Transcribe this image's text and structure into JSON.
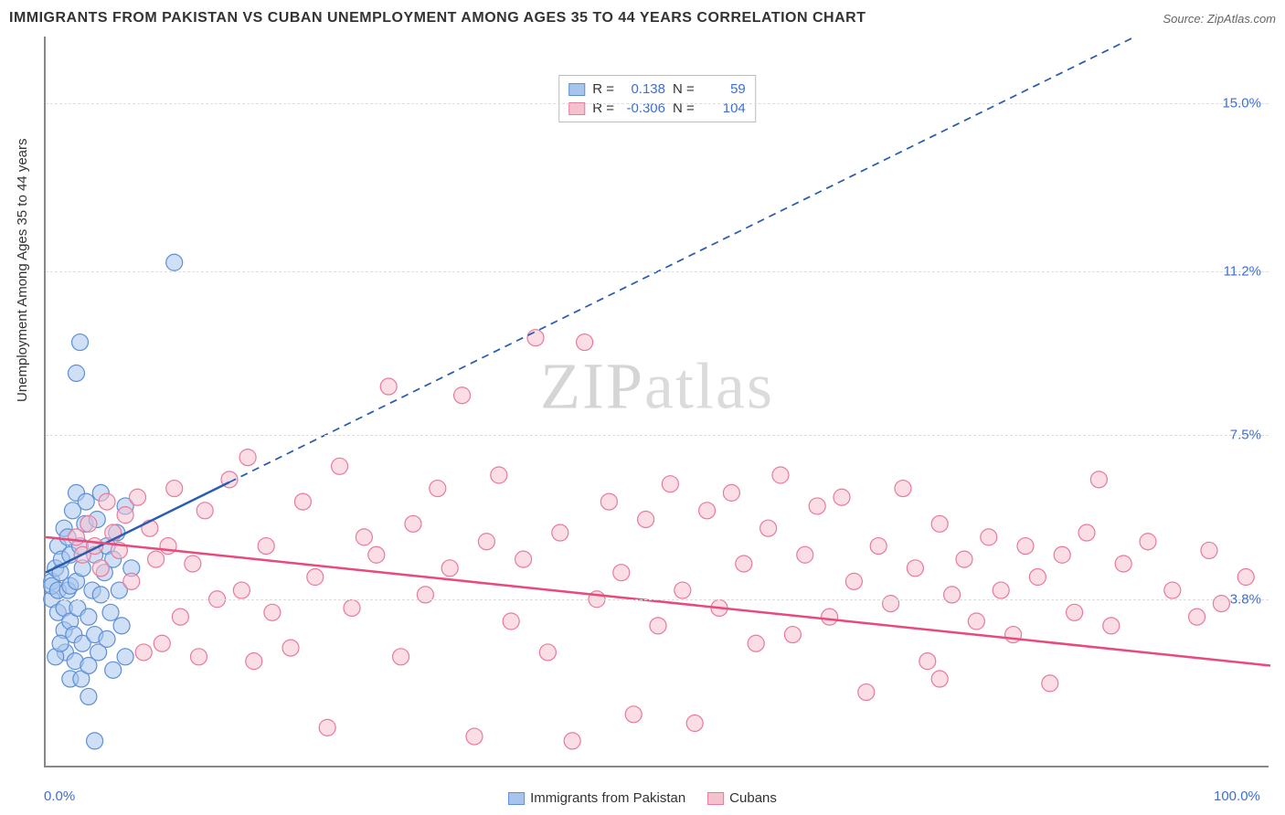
{
  "title": "IMMIGRANTS FROM PAKISTAN VS CUBAN UNEMPLOYMENT AMONG AGES 35 TO 44 YEARS CORRELATION CHART",
  "source": "Source: ZipAtlas.com",
  "watermark_a": "ZIP",
  "watermark_b": "atlas",
  "chart": {
    "type": "scatter",
    "background_color": "#ffffff",
    "grid_color": "#dddddd",
    "axis_color": "#888888",
    "y_axis_label": "Unemployment Among Ages 35 to 44 years",
    "y_axis_fontsize": 15,
    "xlim": [
      0,
      100
    ],
    "ylim": [
      0,
      16.5
    ],
    "x_ticks": [
      {
        "v": 0,
        "label": "0.0%",
        "anchor": "start"
      },
      {
        "v": 100,
        "label": "100.0%",
        "anchor": "end"
      }
    ],
    "y_ticks": [
      {
        "v": 3.8,
        "label": "3.8%"
      },
      {
        "v": 7.5,
        "label": "7.5%"
      },
      {
        "v": 11.2,
        "label": "11.2%"
      },
      {
        "v": 15.0,
        "label": "15.0%"
      }
    ],
    "tick_color": "#3b6fd6",
    "tick_fontsize": 15,
    "marker_radius": 9,
    "marker_opacity": 0.55,
    "series": [
      {
        "name": "Immigrants from Pakistan",
        "fill": "#a7c4ec",
        "stroke": "#5d8fd6",
        "line_color": "#2a5db0",
        "line_width": 2.5,
        "line_dash_solid_to": 15,
        "trend": {
          "x1": 0,
          "y1": 4.4,
          "x2": 100,
          "y2": 18.0
        },
        "stats": {
          "R_label": "R =",
          "R": "0.138",
          "N_label": "N =",
          "N": "59"
        },
        "points": [
          [
            0.5,
            4.2
          ],
          [
            0.5,
            3.8
          ],
          [
            0.5,
            4.1
          ],
          [
            0.8,
            4.5
          ],
          [
            1.0,
            3.5
          ],
          [
            1.0,
            4.0
          ],
          [
            1.0,
            5.0
          ],
          [
            1.2,
            4.4
          ],
          [
            1.3,
            4.7
          ],
          [
            1.5,
            3.1
          ],
          [
            1.5,
            3.6
          ],
          [
            1.5,
            5.4
          ],
          [
            1.6,
            2.6
          ],
          [
            1.8,
            4.0
          ],
          [
            1.8,
            5.2
          ],
          [
            2.0,
            2.0
          ],
          [
            2.0,
            3.3
          ],
          [
            2.0,
            4.1
          ],
          [
            2.0,
            4.8
          ],
          [
            2.2,
            5.8
          ],
          [
            2.3,
            3.0
          ],
          [
            2.4,
            2.4
          ],
          [
            2.5,
            6.2
          ],
          [
            2.5,
            4.2
          ],
          [
            2.6,
            3.6
          ],
          [
            2.8,
            5.0
          ],
          [
            2.9,
            2.0
          ],
          [
            3.0,
            2.8
          ],
          [
            3.0,
            4.5
          ],
          [
            3.2,
            5.5
          ],
          [
            3.3,
            6.0
          ],
          [
            3.5,
            3.4
          ],
          [
            3.5,
            2.3
          ],
          [
            3.8,
            4.0
          ],
          [
            4.0,
            3.0
          ],
          [
            4.0,
            4.8
          ],
          [
            4.2,
            5.6
          ],
          [
            4.3,
            2.6
          ],
          [
            4.5,
            6.2
          ],
          [
            4.5,
            3.9
          ],
          [
            4.8,
            4.4
          ],
          [
            5.0,
            5.0
          ],
          [
            5.0,
            2.9
          ],
          [
            5.3,
            3.5
          ],
          [
            5.5,
            4.7
          ],
          [
            5.8,
            5.3
          ],
          [
            6.0,
            4.0
          ],
          [
            6.2,
            3.2
          ],
          [
            6.5,
            5.9
          ],
          [
            7.0,
            4.5
          ],
          [
            2.5,
            8.9
          ],
          [
            2.8,
            9.6
          ],
          [
            0.8,
            2.5
          ],
          [
            1.2,
            2.8
          ],
          [
            4.0,
            0.6
          ],
          [
            3.5,
            1.6
          ],
          [
            5.5,
            2.2
          ],
          [
            6.5,
            2.5
          ],
          [
            10.5,
            11.4
          ]
        ]
      },
      {
        "name": "Cubans",
        "fill": "#f6c1cf",
        "stroke": "#e87a9a",
        "line_color": "#e84a7a",
        "line_width": 2.5,
        "trend": {
          "x1": 0,
          "y1": 5.2,
          "x2": 100,
          "y2": 2.3
        },
        "stats": {
          "R_label": "R =",
          "R": "-0.306",
          "N_label": "N =",
          "N": "104"
        },
        "points": [
          [
            2.5,
            5.2
          ],
          [
            3.0,
            4.8
          ],
          [
            3.5,
            5.5
          ],
          [
            4.0,
            5.0
          ],
          [
            4.5,
            4.5
          ],
          [
            5.0,
            6.0
          ],
          [
            5.5,
            5.3
          ],
          [
            6.0,
            4.9
          ],
          [
            6.5,
            5.7
          ],
          [
            7.0,
            4.2
          ],
          [
            7.5,
            6.1
          ],
          [
            8.0,
            2.6
          ],
          [
            8.5,
            5.4
          ],
          [
            9.0,
            4.7
          ],
          [
            9.5,
            2.8
          ],
          [
            10.0,
            5.0
          ],
          [
            10.5,
            6.3
          ],
          [
            11.0,
            3.4
          ],
          [
            12.0,
            4.6
          ],
          [
            12.5,
            2.5
          ],
          [
            13.0,
            5.8
          ],
          [
            14.0,
            3.8
          ],
          [
            15.0,
            6.5
          ],
          [
            16.0,
            4.0
          ],
          [
            16.5,
            7.0
          ],
          [
            17.0,
            2.4
          ],
          [
            18.0,
            5.0
          ],
          [
            18.5,
            3.5
          ],
          [
            20.0,
            2.7
          ],
          [
            21.0,
            6.0
          ],
          [
            22.0,
            4.3
          ],
          [
            23.0,
            0.9
          ],
          [
            24.0,
            6.8
          ],
          [
            25.0,
            3.6
          ],
          [
            26.0,
            5.2
          ],
          [
            27.0,
            4.8
          ],
          [
            28.0,
            8.6
          ],
          [
            29.0,
            2.5
          ],
          [
            30.0,
            5.5
          ],
          [
            31.0,
            3.9
          ],
          [
            32.0,
            6.3
          ],
          [
            33.0,
            4.5
          ],
          [
            34.0,
            8.4
          ],
          [
            35.0,
            0.7
          ],
          [
            36.0,
            5.1
          ],
          [
            37.0,
            6.6
          ],
          [
            38.0,
            3.3
          ],
          [
            39.0,
            4.7
          ],
          [
            40.0,
            9.7
          ],
          [
            41.0,
            2.6
          ],
          [
            42.0,
            5.3
          ],
          [
            43.0,
            0.6
          ],
          [
            44.0,
            9.6
          ],
          [
            45.0,
            3.8
          ],
          [
            46.0,
            6.0
          ],
          [
            47.0,
            4.4
          ],
          [
            48.0,
            1.2
          ],
          [
            49.0,
            5.6
          ],
          [
            50.0,
            3.2
          ],
          [
            51.0,
            6.4
          ],
          [
            52.0,
            4.0
          ],
          [
            53.0,
            1.0
          ],
          [
            54.0,
            5.8
          ],
          [
            55.0,
            3.6
          ],
          [
            56.0,
            6.2
          ],
          [
            57.0,
            4.6
          ],
          [
            58.0,
            2.8
          ],
          [
            59.0,
            5.4
          ],
          [
            60.0,
            6.6
          ],
          [
            61.0,
            3.0
          ],
          [
            62.0,
            4.8
          ],
          [
            63.0,
            5.9
          ],
          [
            64.0,
            3.4
          ],
          [
            65.0,
            6.1
          ],
          [
            66.0,
            4.2
          ],
          [
            67.0,
            1.7
          ],
          [
            68.0,
            5.0
          ],
          [
            69.0,
            3.7
          ],
          [
            70.0,
            6.3
          ],
          [
            71.0,
            4.5
          ],
          [
            72.0,
            2.4
          ],
          [
            73.0,
            5.5
          ],
          [
            74.0,
            3.9
          ],
          [
            75.0,
            4.7
          ],
          [
            76.0,
            3.3
          ],
          [
            77.0,
            5.2
          ],
          [
            78.0,
            4.0
          ],
          [
            79.0,
            3.0
          ],
          [
            80.0,
            5.0
          ],
          [
            81.0,
            4.3
          ],
          [
            82.0,
            1.9
          ],
          [
            83.0,
            4.8
          ],
          [
            84.0,
            3.5
          ],
          [
            85.0,
            5.3
          ],
          [
            86.0,
            6.5
          ],
          [
            87.0,
            3.2
          ],
          [
            88.0,
            4.6
          ],
          [
            90.0,
            5.1
          ],
          [
            92.0,
            4.0
          ],
          [
            94.0,
            3.4
          ],
          [
            95.0,
            4.9
          ],
          [
            96.0,
            3.7
          ],
          [
            98.0,
            4.3
          ],
          [
            73.0,
            2.0
          ]
        ]
      }
    ],
    "bottom_legend": [
      {
        "label": "Immigrants from Pakistan",
        "fill": "#a7c4ec",
        "stroke": "#5d8fd6"
      },
      {
        "label": "Cubans",
        "fill": "#f6c1cf",
        "stroke": "#e87a9a"
      }
    ]
  }
}
